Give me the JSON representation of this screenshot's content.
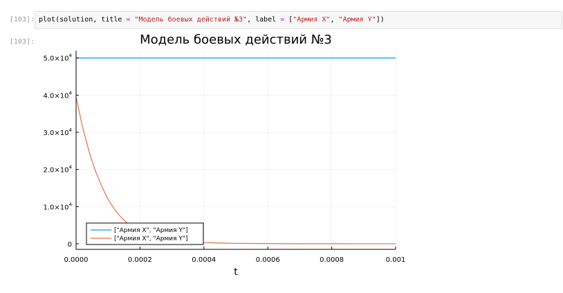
{
  "notebook": {
    "in_prompt": "[103]:",
    "out_prompt": "[103]:",
    "code": {
      "func": "plot(solution, title ",
      "eq1": "=",
      "sp1": " ",
      "title_str": "\"Модель боевых действий №3\"",
      "mid": ", label ",
      "eq2": "=",
      "sp2": " [",
      "label1": "\"Армия X\"",
      "comma": ", ",
      "label2": "\"Армия Y\"",
      "close": "])"
    }
  },
  "chart_data": {
    "type": "line",
    "title": "Модель боевых действий №3",
    "xlabel": "t",
    "ylabel": "",
    "xlim": [
      0,
      0.001
    ],
    "ylim": [
      -1500,
      52000
    ],
    "grid": true,
    "legend_position": "bottom-left",
    "x_ticks": [
      0,
      0.0002,
      0.0004,
      0.0006,
      0.0008,
      0.001
    ],
    "x_tick_labels": [
      "0.0000",
      "0.0002",
      "0.0004",
      "0.0006",
      "0.0008",
      "0.001"
    ],
    "y_ticks": [
      0,
      10000,
      20000,
      30000,
      40000,
      50000
    ],
    "y_tick_labels": [
      {
        "mantissa": "0",
        "exp": ""
      },
      {
        "mantissa": "1.0×10",
        "exp": "4"
      },
      {
        "mantissa": "2.0×10",
        "exp": "4"
      },
      {
        "mantissa": "3.0×10",
        "exp": "4"
      },
      {
        "mantissa": "4.0×10",
        "exp": "4"
      },
      {
        "mantissa": "5.0×10",
        "exp": "4"
      }
    ],
    "series": [
      {
        "name": "[\"Армия X\", \"Армия Y\"]",
        "color": "#009af9",
        "x": [
          0,
          0.0001,
          0.0002,
          0.0003,
          0.0004,
          0.0005,
          0.0006,
          0.0007,
          0.0008,
          0.0009,
          0.001
        ],
        "y": [
          50000,
          50000,
          50000,
          50000,
          50000,
          50000,
          50000,
          50000,
          50000,
          50000,
          50000
        ]
      },
      {
        "name": "[\"Армия X\", \"Армия Y\"]",
        "color": "#e26f46",
        "x": [
          0,
          2e-05,
          4e-05,
          6e-05,
          8e-05,
          0.0001,
          0.00012,
          0.00014,
          0.00016,
          0.00018,
          0.0002,
          0.00025,
          0.0003,
          0.00035,
          0.0004,
          0.00045,
          0.0005,
          0.0006,
          0.0007,
          0.0008,
          0.0009,
          0.001
        ],
        "y": [
          39500,
          31500,
          25000,
          19700,
          15500,
          12000,
          9300,
          7200,
          5600,
          4300,
          3300,
          1800,
          1000,
          600,
          350,
          200,
          120,
          50,
          20,
          10,
          5,
          2
        ]
      }
    ]
  }
}
